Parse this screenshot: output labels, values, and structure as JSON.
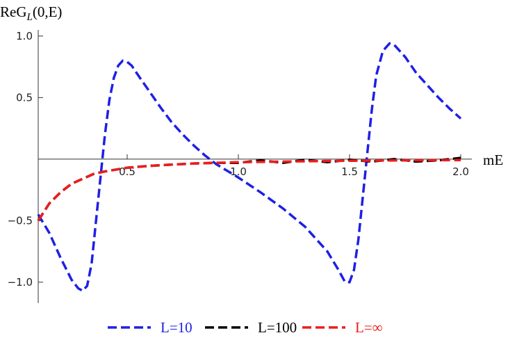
{
  "chart_data": {
    "type": "line",
    "ylabel": {
      "base": "ReG",
      "sub": "L",
      "rest": "(0,E)"
    },
    "xlabel": "mE",
    "xlim": [
      0.1,
      2.05
    ],
    "ylim": [
      -1.17,
      1.05
    ],
    "xticks": [
      0.5,
      {
        "value": 1,
        "label": "1.0"
      },
      1.5,
      {
        "value": 2,
        "label": "2.0"
      }
    ],
    "yticks": [
      {
        "value": 1,
        "label": "1.0"
      },
      0.5,
      {
        "value": -0.5,
        "label": "−0.5"
      },
      {
        "value": -1,
        "label": "−1.0"
      }
    ],
    "series": [
      {
        "name": "L=10",
        "color": "#1f1fe6",
        "x": [
          0.1,
          0.15,
          0.2,
          0.25,
          0.28,
          0.3,
          0.32,
          0.34,
          0.36,
          0.38,
          0.4,
          0.42,
          0.44,
          0.46,
          0.48,
          0.5,
          0.52,
          0.55,
          0.6,
          0.65,
          0.7,
          0.75,
          0.8,
          0.85,
          0.9,
          1.0,
          1.1,
          1.2,
          1.3,
          1.4,
          1.45,
          1.48,
          1.5,
          1.52,
          1.54,
          1.56,
          1.58,
          1.6,
          1.62,
          1.65,
          1.68,
          1.7,
          1.75,
          1.8,
          1.85,
          1.9,
          1.95,
          2.0
        ],
        "values": [
          -0.45,
          -0.6,
          -0.8,
          -0.98,
          -1.05,
          -1.07,
          -1.03,
          -0.85,
          -0.5,
          -0.15,
          0.2,
          0.48,
          0.66,
          0.76,
          0.8,
          0.79,
          0.76,
          0.68,
          0.55,
          0.42,
          0.3,
          0.2,
          0.11,
          0.03,
          -0.04,
          -0.15,
          -0.27,
          -0.4,
          -0.55,
          -0.75,
          -0.9,
          -1.0,
          -1.0,
          -0.9,
          -0.65,
          -0.3,
          0.05,
          0.4,
          0.68,
          0.88,
          0.94,
          0.93,
          0.83,
          0.7,
          0.6,
          0.5,
          0.41,
          0.33
        ]
      },
      {
        "name": "L=100",
        "color": "#000000",
        "x": [
          0.1,
          0.15,
          0.2,
          0.25,
          0.3,
          0.35,
          0.4,
          0.5,
          0.6,
          0.7,
          0.8,
          0.9,
          1.0,
          1.1,
          1.2,
          1.3,
          1.4,
          1.5,
          1.6,
          1.7,
          1.8,
          1.9,
          2.0
        ],
        "values": [
          -0.5,
          -0.36,
          -0.27,
          -0.2,
          -0.16,
          -0.12,
          -0.1,
          -0.07,
          -0.055,
          -0.045,
          -0.035,
          -0.03,
          -0.03,
          -0.01,
          -0.03,
          -0.005,
          -0.025,
          -0.005,
          -0.02,
          0.0,
          -0.02,
          -0.01,
          0.01
        ]
      },
      {
        "name": "L=∞",
        "color": "#ee1c1c",
        "x": [
          0.1,
          0.15,
          0.2,
          0.25,
          0.3,
          0.35,
          0.4,
          0.5,
          0.6,
          0.7,
          0.8,
          1.0,
          1.2,
          1.4,
          1.6,
          1.8,
          2.0
        ],
        "values": [
          -0.5,
          -0.36,
          -0.27,
          -0.2,
          -0.16,
          -0.12,
          -0.1,
          -0.07,
          -0.055,
          -0.045,
          -0.035,
          -0.025,
          -0.02,
          -0.015,
          -0.012,
          -0.01,
          -0.008
        ]
      }
    ]
  }
}
